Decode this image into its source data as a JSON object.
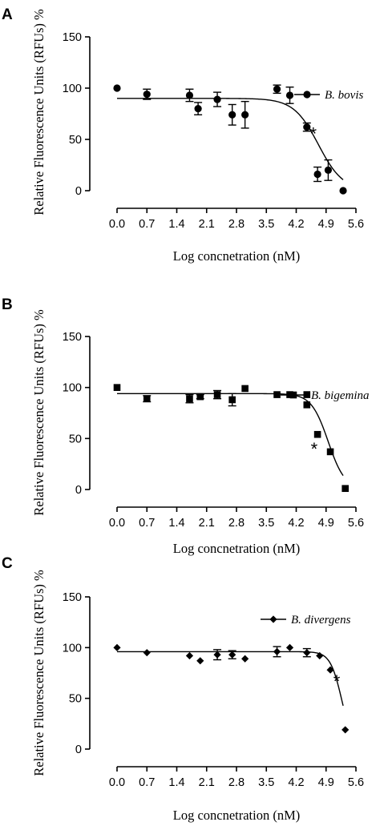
{
  "chart_data": [
    {
      "panel": "A",
      "type": "scatter",
      "xlabel": "Log concnetration (nM)",
      "ylabel": "Relative Fluorescence Units (RFUs) %",
      "xticks": [
        "0.0",
        "0.7",
        "1.4",
        "2.1",
        "2.8",
        "3.5",
        "4.2",
        "4.9",
        "5.6"
      ],
      "yticks": [
        "0",
        "50",
        "100",
        "150"
      ],
      "xlim": [
        0.0,
        5.6
      ],
      "ylim": [
        0,
        150
      ],
      "marker": "circle",
      "series": [
        {
          "name": "B. bovis",
          "points": [
            {
              "x": 0.0,
              "y": 100,
              "err": 0
            },
            {
              "x": 0.7,
              "y": 94,
              "err": 5
            },
            {
              "x": 1.7,
              "y": 93,
              "err": 6
            },
            {
              "x": 1.9,
              "y": 80,
              "err": 6
            },
            {
              "x": 2.35,
              "y": 89,
              "err": 7
            },
            {
              "x": 2.7,
              "y": 74,
              "err": 10
            },
            {
              "x": 3.0,
              "y": 74,
              "err": 13
            },
            {
              "x": 3.75,
              "y": 99,
              "err": 4
            },
            {
              "x": 4.05,
              "y": 93,
              "err": 8
            },
            {
              "x": 4.45,
              "y": 62,
              "err": 4
            },
            {
              "x": 4.7,
              "y": 16,
              "err": 7
            },
            {
              "x": 4.95,
              "y": 20,
              "err": 10
            },
            {
              "x": 5.3,
              "y": 0,
              "err": 0
            }
          ],
          "fit": {
            "top": 90,
            "bottom": 0,
            "logIC50": 4.72,
            "hill": -1.5,
            "xmax": 5.3
          }
        }
      ],
      "legend_position": "top-right",
      "annotations": [
        {
          "text": "*",
          "x": 4.6,
          "y": 56
        }
      ]
    },
    {
      "panel": "B",
      "type": "scatter",
      "xlabel": "Log concnetration (nM)",
      "ylabel": "Relative Fluorescence Units (RFUs) %",
      "xticks": [
        "0.0",
        "0.7",
        "1.4",
        "2.1",
        "2.8",
        "3.5",
        "4.2",
        "4.9",
        "5.6"
      ],
      "yticks": [
        "0",
        "50",
        "100",
        "150"
      ],
      "xlim": [
        0.0,
        5.6
      ],
      "ylim": [
        0,
        150
      ],
      "marker": "square",
      "series": [
        {
          "name": "B. bigemina",
          "points": [
            {
              "x": 0.0,
              "y": 100,
              "err": 0
            },
            {
              "x": 0.7,
              "y": 89,
              "err": 3
            },
            {
              "x": 1.7,
              "y": 89,
              "err": 4
            },
            {
              "x": 1.95,
              "y": 91,
              "err": 2
            },
            {
              "x": 2.35,
              "y": 93,
              "err": 4
            },
            {
              "x": 2.7,
              "y": 88,
              "err": 6
            },
            {
              "x": 3.0,
              "y": 99,
              "err": 0
            },
            {
              "x": 3.75,
              "y": 93,
              "err": 0
            },
            {
              "x": 4.05,
              "y": 93,
              "err": 0
            },
            {
              "x": 4.45,
              "y": 93,
              "err": 0
            },
            {
              "x": 4.45,
              "y": 83,
              "err": 0
            },
            {
              "x": 4.7,
              "y": 54,
              "err": 0
            },
            {
              "x": 5.0,
              "y": 37,
              "err": 0
            },
            {
              "x": 5.35,
              "y": 1,
              "err": 0
            }
          ],
          "fit": {
            "top": 94,
            "bottom": 0,
            "logIC50": 4.95,
            "hill": -2.2,
            "xmax": 5.3
          }
        }
      ],
      "legend_position": "top-right",
      "annotations": [
        {
          "text": "*",
          "x": 4.62,
          "y": 40
        }
      ]
    },
    {
      "panel": "C",
      "type": "scatter",
      "xlabel": "Log concnetration (nM)",
      "ylabel": "Relative Fluorescence Units (RFUs) %",
      "xticks": [
        "0.0",
        "0.7",
        "1.4",
        "2.1",
        "2.8",
        "3.5",
        "4.2",
        "4.9",
        "5.6"
      ],
      "yticks": [
        "0",
        "50",
        "100",
        "150"
      ],
      "xlim": [
        0.0,
        5.6
      ],
      "ylim": [
        0,
        150
      ],
      "marker": "diamond",
      "series": [
        {
          "name": "B. divergens",
          "points": [
            {
              "x": 0.0,
              "y": 100,
              "err": 0
            },
            {
              "x": 0.7,
              "y": 95,
              "err": 0
            },
            {
              "x": 1.7,
              "y": 92,
              "err": 0
            },
            {
              "x": 1.95,
              "y": 87,
              "err": 0
            },
            {
              "x": 2.35,
              "y": 93,
              "err": 5
            },
            {
              "x": 2.7,
              "y": 93,
              "err": 4
            },
            {
              "x": 3.0,
              "y": 89,
              "err": 0
            },
            {
              "x": 3.75,
              "y": 96,
              "err": 5
            },
            {
              "x": 4.05,
              "y": 100,
              "err": 0
            },
            {
              "x": 4.45,
              "y": 95,
              "err": 4
            },
            {
              "x": 4.75,
              "y": 92,
              "err": 0
            },
            {
              "x": 5.0,
              "y": 78,
              "err": 0
            },
            {
              "x": 5.35,
              "y": 19,
              "err": 0
            }
          ],
          "fit": {
            "top": 96,
            "bottom": 0,
            "logIC50": 5.27,
            "hill": -3.2,
            "xmax": 5.3
          }
        }
      ],
      "legend_position": "top-right",
      "annotations": [
        {
          "text": "*",
          "x": 5.15,
          "y": 67
        }
      ]
    }
  ]
}
